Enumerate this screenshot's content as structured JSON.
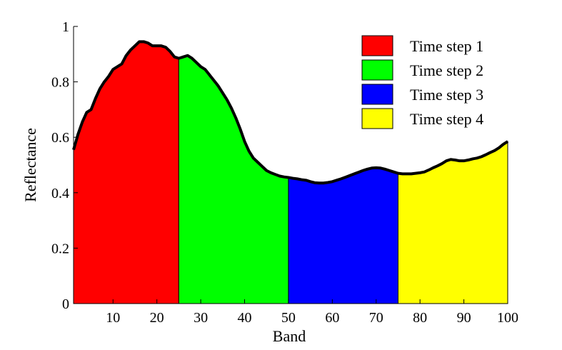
{
  "chart_data": {
    "type": "area",
    "xlabel": "Band",
    "ylabel": "Reflectance",
    "xlim": [
      1,
      100
    ],
    "ylim": [
      0,
      1
    ],
    "xticks": [
      10,
      20,
      30,
      40,
      50,
      60,
      70,
      80,
      90,
      100
    ],
    "yticks": [
      0,
      0.2,
      0.4,
      0.6,
      0.8,
      1
    ],
    "ytick_labels": [
      "0",
      "0.2",
      "0.4",
      "0.6",
      "0.8",
      "1"
    ],
    "grid": false,
    "legend_position": "top-right",
    "x": [
      1,
      2,
      3,
      4,
      5,
      6,
      7,
      8,
      9,
      10,
      11,
      12,
      13,
      14,
      15,
      16,
      17,
      18,
      19,
      20,
      21,
      22,
      23,
      24,
      25,
      26,
      27,
      28,
      29,
      30,
      31,
      32,
      33,
      34,
      35,
      36,
      37,
      38,
      39,
      40,
      41,
      42,
      43,
      44,
      45,
      46,
      47,
      48,
      49,
      50,
      51,
      52,
      53,
      54,
      55,
      56,
      57,
      58,
      59,
      60,
      61,
      62,
      63,
      64,
      65,
      66,
      67,
      68,
      69,
      70,
      71,
      72,
      73,
      74,
      75,
      76,
      77,
      78,
      79,
      80,
      81,
      82,
      83,
      84,
      85,
      86,
      87,
      88,
      89,
      90,
      91,
      92,
      93,
      94,
      95,
      96,
      97,
      98,
      99,
      100
    ],
    "values": [
      0.555,
      0.61,
      0.655,
      0.69,
      0.7,
      0.74,
      0.775,
      0.8,
      0.82,
      0.845,
      0.855,
      0.865,
      0.895,
      0.915,
      0.93,
      0.945,
      0.945,
      0.94,
      0.93,
      0.93,
      0.93,
      0.925,
      0.91,
      0.89,
      0.885,
      0.89,
      0.895,
      0.885,
      0.87,
      0.855,
      0.845,
      0.825,
      0.805,
      0.785,
      0.76,
      0.735,
      0.705,
      0.67,
      0.63,
      0.585,
      0.55,
      0.525,
      0.51,
      0.495,
      0.48,
      0.472,
      0.466,
      0.46,
      0.457,
      0.455,
      0.452,
      0.45,
      0.447,
      0.445,
      0.44,
      0.436,
      0.435,
      0.435,
      0.437,
      0.44,
      0.445,
      0.45,
      0.456,
      0.462,
      0.468,
      0.474,
      0.48,
      0.485,
      0.489,
      0.49,
      0.489,
      0.485,
      0.48,
      0.475,
      0.47,
      0.468,
      0.468,
      0.468,
      0.47,
      0.472,
      0.475,
      0.482,
      0.49,
      0.497,
      0.505,
      0.515,
      0.52,
      0.518,
      0.515,
      0.515,
      0.518,
      0.522,
      0.525,
      0.53,
      0.537,
      0.545,
      0.552,
      0.562,
      0.575,
      0.585
    ],
    "series": [
      {
        "name": "Time step 1",
        "color": "#ff0000",
        "x_range": [
          1,
          25
        ]
      },
      {
        "name": "Time step 2",
        "color": "#00ff00",
        "x_range": [
          25,
          50
        ]
      },
      {
        "name": "Time step 3",
        "color": "#0000ff",
        "x_range": [
          50,
          75
        ]
      },
      {
        "name": "Time step 4",
        "color": "#ffff00",
        "x_range": [
          75,
          100
        ]
      }
    ]
  }
}
